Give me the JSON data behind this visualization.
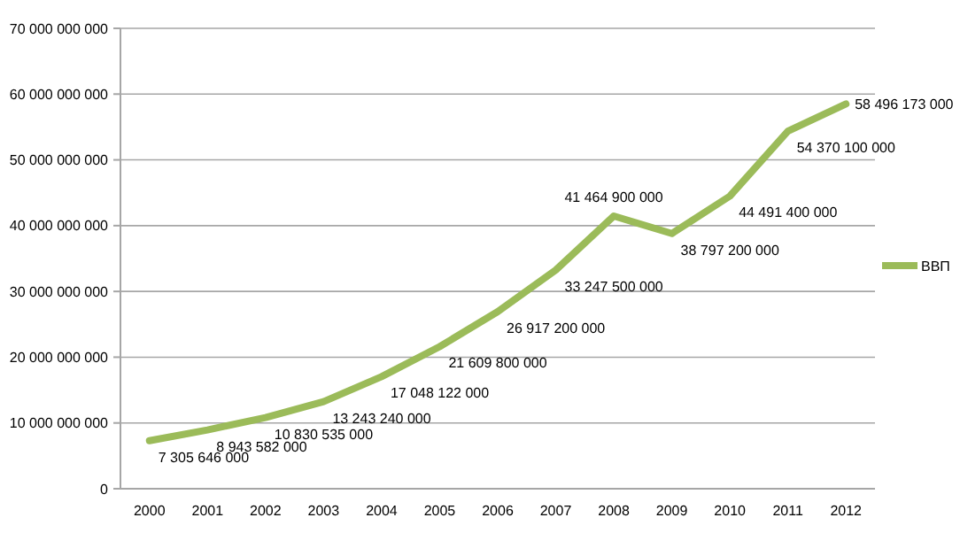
{
  "chart_data": {
    "type": "line",
    "categories": [
      "2000",
      "2001",
      "2002",
      "2003",
      "2004",
      "2005",
      "2006",
      "2007",
      "2008",
      "2009",
      "2010",
      "2011",
      "2012"
    ],
    "series": [
      {
        "name": "ВВП",
        "color": "#9bbb59",
        "values": [
          7305646000,
          8943582000,
          10830535000,
          13243240000,
          17048122000,
          21609800000,
          26917200000,
          33247500000,
          41464900000,
          38797200000,
          44491400000,
          54370100000,
          58496173000
        ],
        "value_labels": [
          "7 305 646 000",
          "8 943 582 000",
          "10 830 535 000",
          "13 243 240 000",
          "17 048 122 000",
          "21 609 800 000",
          "26 917 200 000",
          "33 247 500 000",
          "41 464 900 000",
          "38 797 200 000",
          "44 491 400 000",
          "54 370 100 000",
          "58 496 173 000"
        ]
      }
    ],
    "ylim": [
      0,
      70000000000
    ],
    "yticks": [
      0,
      {
        "value": 10000000000,
        "label": "10 000 000 000"
      },
      {
        "value": 20000000000,
        "label": "20 000 000 000"
      },
      {
        "value": 30000000000,
        "label": "30 000 000 000"
      },
      {
        "value": 40000000000,
        "label": "40 000 000 000"
      },
      {
        "value": 50000000000,
        "label": "50 000 000 000"
      },
      {
        "value": 60000000000,
        "label": "60 000 000 000"
      },
      {
        "value": 70000000000,
        "label": "70 000 000 000"
      }
    ],
    "grid": "y",
    "legend": "right",
    "marker": "none",
    "line_style": "solid"
  }
}
